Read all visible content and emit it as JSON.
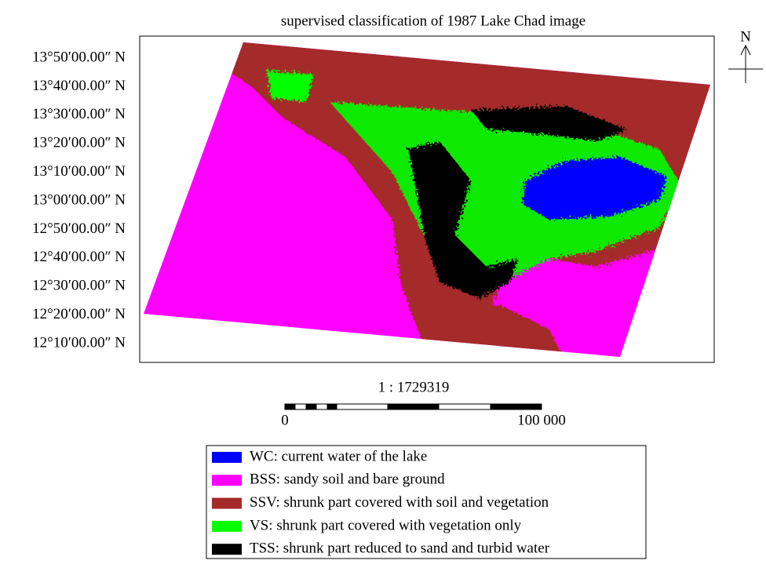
{
  "title": "supervised classification of 1987  Lake Chad image",
  "latitude_labels": [
    "13°50′00.00″ N",
    "13°40′00.00″ N",
    "13°30′00.00″ N",
    "13°20′00.00″ N",
    "13°10′00.00″ N",
    "13°00′00.00″ N",
    "12°50′00.00″ N",
    "12°40′00.00″ N",
    "12°30′00.00″ N",
    "12°20′00.00″ N",
    "12°10′00.00″ N"
  ],
  "scale": {
    "ratio": "1 : 1729319",
    "bar_labels": [
      "0",
      "100 000"
    ]
  },
  "north": "N",
  "legend": [
    {
      "label": "WC: current water of the lake",
      "color": "#0000ff"
    },
    {
      "label": "BSS: sandy soil and bare ground",
      "color": "#ff00ff"
    },
    {
      "label": "SSV: shrunk part covered with soil and vegetation",
      "color": "#a52a2a"
    },
    {
      "label": "VS: shrunk part covered with vegetation only",
      "color": "#00ff00"
    },
    {
      "label": "TSS: shrunk part reduced to sand and turbid water",
      "color": "#000000"
    }
  ]
}
